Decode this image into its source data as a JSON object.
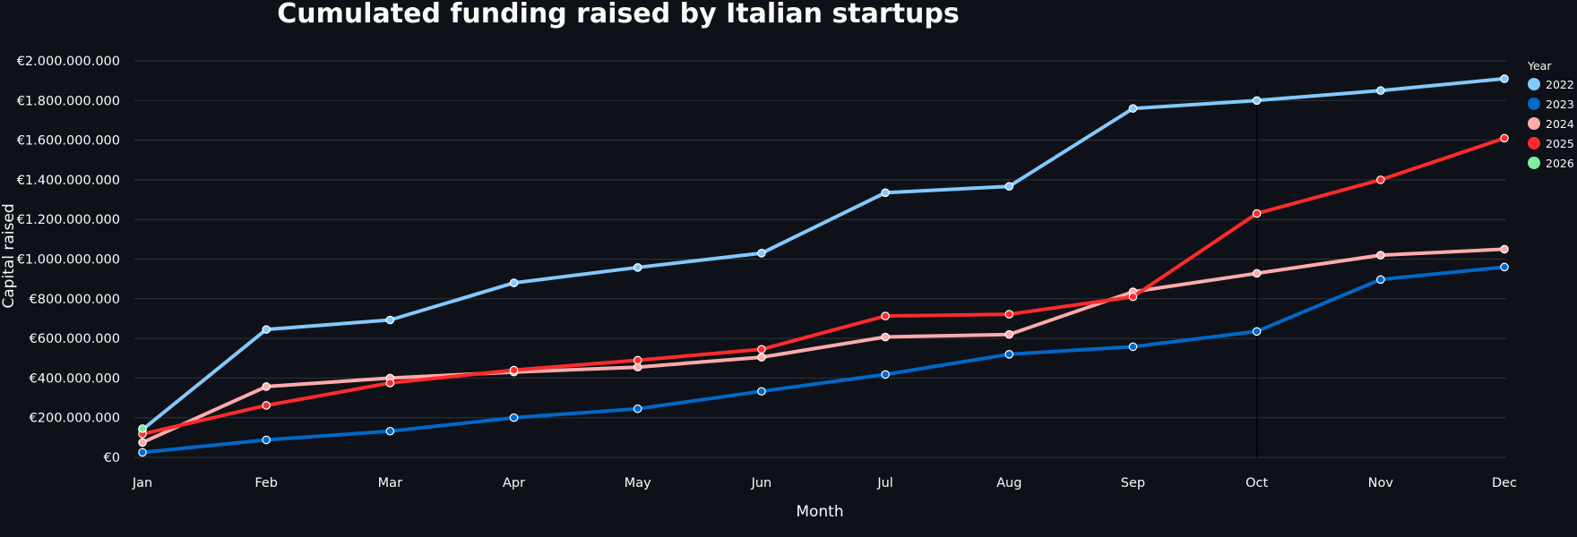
{
  "chart_data": {
    "type": "line",
    "title": "Cumulated funding raised by Italian startups",
    "xlabel": "Month",
    "ylabel": "Capital raised",
    "categories": [
      "Jan",
      "Feb",
      "Mar",
      "Apr",
      "May",
      "Jun",
      "Jul",
      "Aug",
      "Sep",
      "Oct",
      "Nov",
      "Dec"
    ],
    "ylim": [
      0,
      2000000000
    ],
    "yticks": [
      0,
      200000000,
      400000000,
      600000000,
      800000000,
      1000000000,
      1200000000,
      1400000000,
      1600000000,
      1800000000,
      2000000000
    ],
    "ytick_labels": [
      "€0",
      "€200.000.000",
      "€400.000.000",
      "€600.000.000",
      "€800.000.000",
      "€1.000.000.000",
      "€1.200.000.000",
      "€1.400.000.000",
      "€1.600.000.000",
      "€1.800.000.000",
      "€2.000.000.000"
    ],
    "grid": true,
    "legend_title": "Year",
    "legend_position": "right",
    "hover_marker_month": "Oct",
    "series": [
      {
        "name": "2022",
        "color": "#83c9ff",
        "values": [
          140000000,
          645000000,
          693000000,
          880000000,
          958000000,
          1030000000,
          1335000000,
          1367000000,
          1760000000,
          1800000000,
          1850000000,
          1910000000
        ]
      },
      {
        "name": "2023",
        "color": "#0068c9",
        "values": [
          25000000,
          88000000,
          132000000,
          200000000,
          245000000,
          333000000,
          418000000,
          520000000,
          558000000,
          635000000,
          897000000,
          960000000
        ]
      },
      {
        "name": "2024",
        "color": "#ffabab",
        "values": [
          75000000,
          357000000,
          400000000,
          430000000,
          455000000,
          505000000,
          607000000,
          620000000,
          835000000,
          928000000,
          1020000000,
          1050000000
        ]
      },
      {
        "name": "2025",
        "color": "#ff2b2b",
        "values": [
          118000000,
          262000000,
          375000000,
          440000000,
          490000000,
          545000000,
          713000000,
          722000000,
          810000000,
          1230000000,
          1400000000,
          1610000000
        ]
      },
      {
        "name": "2026",
        "color": "#7defa1",
        "values": [
          145000000,
          null,
          null,
          null,
          null,
          null,
          null,
          null,
          null,
          null,
          null,
          null
        ]
      }
    ]
  },
  "colors": {
    "background": "#0e1117",
    "grid": "#31333f",
    "text": "#fafafa",
    "hover_line": "#000000"
  }
}
